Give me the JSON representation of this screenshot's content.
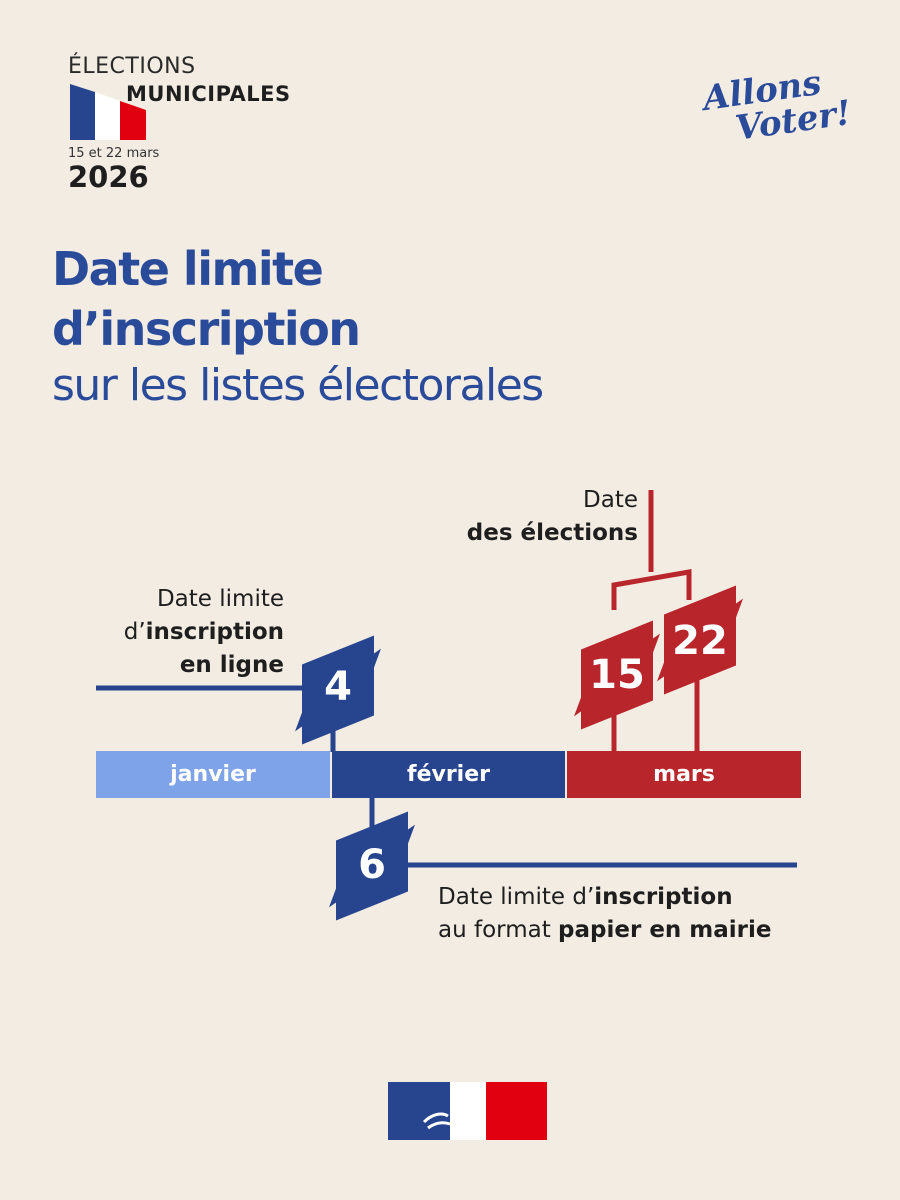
{
  "header": {
    "line1": "ÉLECTIONS",
    "line2": "MUNICIPALES",
    "dates": "15 et 22 mars",
    "year": "2026",
    "slogan_line1": "Allons",
    "slogan_line2": "Voter!"
  },
  "title": {
    "line1": "Date limite",
    "line2": "d’inscription",
    "line3": "sur les listes électorales"
  },
  "timeline": {
    "months": [
      {
        "label": "janvier",
        "color": "#7ea3e8"
      },
      {
        "label": "février",
        "color": "#27458f"
      },
      {
        "label": "mars",
        "color": "#b8262c"
      }
    ],
    "events": [
      {
        "day": "4",
        "month": "février",
        "label_prefix": "Date limite",
        "label_mid_prefix": "d’",
        "label_mid_bold": "inscription",
        "label_bold2": "en ligne",
        "color": "#27458f"
      },
      {
        "day": "6",
        "month": "février",
        "label_line1_prefix": "Date limite d’",
        "label_line1_bold": "inscription",
        "label_line2_prefix": "au format ",
        "label_line2_bold": "papier en mairie",
        "color": "#27458f"
      },
      {
        "day": "15",
        "month": "mars",
        "color": "#b8262c"
      },
      {
        "day": "22",
        "month": "mars",
        "color": "#b8262c"
      }
    ],
    "elections_label_line1": "Date",
    "elections_label_line2": "des élections"
  },
  "colors": {
    "background": "#f3ece3",
    "blue": "#27458f",
    "light_blue": "#7ea3e8",
    "red": "#b8262c"
  }
}
